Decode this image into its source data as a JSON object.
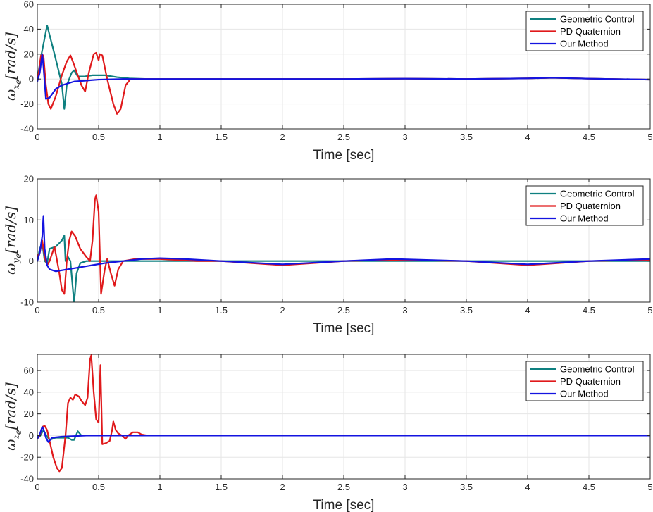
{
  "chart_data": [
    {
      "type": "line",
      "ylabel_symbol": "ω",
      "ylabel_sub1": "x",
      "ylabel_sub2": "e",
      "ylabel_unit": "[rad/s]",
      "xlabel": "Time [sec]",
      "xlim": [
        0,
        5
      ],
      "ylim": [
        -40,
        60
      ],
      "xticks": [
        0,
        0.5,
        1,
        1.5,
        2,
        2.5,
        3,
        3.5,
        4,
        4.5,
        5
      ],
      "xtick_labels": [
        "0",
        "0.5",
        "1",
        "1.5",
        "2",
        "2.5",
        "3",
        "3.5",
        "4",
        "4.5",
        "5"
      ],
      "yticks": [
        -40,
        -20,
        0,
        20,
        40,
        60
      ],
      "ytick_labels": [
        "-40",
        "-20",
        "0",
        "20",
        "40",
        "60"
      ],
      "grid": true,
      "legend_position": "top-right",
      "series": [
        {
          "name": "Geometric Control",
          "color": "#0f8080",
          "points": [
            [
              0,
              0
            ],
            [
              0.03,
              18
            ],
            [
              0.08,
              43
            ],
            [
              0.14,
              20
            ],
            [
              0.2,
              -4
            ],
            [
              0.22,
              -24
            ],
            [
              0.24,
              -5
            ],
            [
              0.28,
              5
            ],
            [
              0.3,
              7
            ],
            [
              0.33,
              2
            ],
            [
              0.38,
              2
            ],
            [
              0.45,
              3
            ],
            [
              0.55,
              3
            ],
            [
              0.65,
              1.5
            ],
            [
              0.75,
              0.5
            ],
            [
              0.9,
              0
            ],
            [
              1.5,
              0
            ],
            [
              2,
              0
            ],
            [
              2.5,
              0
            ],
            [
              3,
              0.3
            ],
            [
              3.5,
              0
            ],
            [
              4,
              0.5
            ],
            [
              4.2,
              1
            ],
            [
              4.5,
              0.3
            ],
            [
              5,
              -0.5
            ]
          ]
        },
        {
          "name": "PD Quaternion",
          "color": "#e0191b",
          "points": [
            [
              0,
              0
            ],
            [
              0.01,
              4
            ],
            [
              0.03,
              19
            ],
            [
              0.05,
              19
            ],
            [
              0.07,
              -5
            ],
            [
              0.09,
              -20
            ],
            [
              0.11,
              -24
            ],
            [
              0.15,
              -14
            ],
            [
              0.2,
              3
            ],
            [
              0.24,
              14
            ],
            [
              0.27,
              19
            ],
            [
              0.29,
              14
            ],
            [
              0.33,
              3
            ],
            [
              0.36,
              -5
            ],
            [
              0.39,
              -10
            ],
            [
              0.42,
              5
            ],
            [
              0.46,
              20
            ],
            [
              0.48,
              21
            ],
            [
              0.5,
              15
            ],
            [
              0.51,
              20
            ],
            [
              0.53,
              19
            ],
            [
              0.57,
              0
            ],
            [
              0.62,
              -20
            ],
            [
              0.65,
              -28
            ],
            [
              0.68,
              -24
            ],
            [
              0.72,
              -5
            ],
            [
              0.76,
              0
            ],
            [
              0.82,
              0
            ],
            [
              0.9,
              0
            ],
            [
              1,
              0
            ],
            [
              1.5,
              0
            ],
            [
              2,
              0
            ],
            [
              2.5,
              0
            ],
            [
              3,
              0.3
            ],
            [
              3.5,
              0
            ],
            [
              4,
              0.5
            ],
            [
              4.2,
              1
            ],
            [
              4.5,
              0.3
            ],
            [
              5,
              -0.5
            ]
          ]
        },
        {
          "name": "Our Method",
          "color": "#1414e0",
          "points": [
            [
              0,
              -2
            ],
            [
              0.02,
              5
            ],
            [
              0.04,
              20
            ],
            [
              0.05,
              10
            ],
            [
              0.07,
              -16
            ],
            [
              0.1,
              -15
            ],
            [
              0.15,
              -8
            ],
            [
              0.2,
              -5
            ],
            [
              0.3,
              -2
            ],
            [
              0.5,
              -0.5
            ],
            [
              0.7,
              0
            ],
            [
              1,
              0
            ],
            [
              1.5,
              0
            ],
            [
              2,
              0
            ],
            [
              2.5,
              0
            ],
            [
              3,
              0.3
            ],
            [
              3.5,
              0
            ],
            [
              4,
              0.5
            ],
            [
              4.2,
              1
            ],
            [
              4.5,
              0.3
            ],
            [
              5,
              -0.5
            ]
          ]
        }
      ]
    },
    {
      "type": "line",
      "ylabel_symbol": "ω",
      "ylabel_sub1": "y",
      "ylabel_sub2": "e",
      "ylabel_unit": "[rad/s]",
      "xlabel": "Time [sec]",
      "xlim": [
        0,
        5
      ],
      "ylim": [
        -10,
        20
      ],
      "xticks": [
        0,
        0.5,
        1,
        1.5,
        2,
        2.5,
        3,
        3.5,
        4,
        4.5,
        5
      ],
      "xtick_labels": [
        "0",
        "0.5",
        "1",
        "1.5",
        "2",
        "2.5",
        "3",
        "3.5",
        "4",
        "4.5",
        "5"
      ],
      "yticks": [
        -10,
        0,
        10,
        20
      ],
      "ytick_labels": [
        "-10",
        "0",
        "10",
        "20"
      ],
      "grid": true,
      "legend_position": "top-right",
      "series": [
        {
          "name": "Geometric Control",
          "color": "#0f8080",
          "points": [
            [
              0,
              0
            ],
            [
              0.02,
              3
            ],
            [
              0.04,
              4.5
            ],
            [
              0.06,
              0
            ],
            [
              0.08,
              -0.5
            ],
            [
              0.1,
              3
            ],
            [
              0.15,
              3.5
            ],
            [
              0.2,
              5
            ],
            [
              0.22,
              6.2
            ],
            [
              0.23,
              0
            ],
            [
              0.25,
              1
            ],
            [
              0.27,
              0
            ],
            [
              0.3,
              -10.3
            ],
            [
              0.32,
              -3
            ],
            [
              0.35,
              -0.5
            ],
            [
              0.4,
              0
            ],
            [
              0.5,
              0
            ],
            [
              0.8,
              0
            ],
            [
              1,
              0
            ],
            [
              1.5,
              0
            ],
            [
              2,
              0
            ],
            [
              2.5,
              0
            ],
            [
              3,
              0
            ],
            [
              3.5,
              0
            ],
            [
              4,
              0
            ],
            [
              4.5,
              0
            ],
            [
              5,
              0
            ]
          ]
        },
        {
          "name": "PD Quaternion",
          "color": "#e0191b",
          "points": [
            [
              0,
              1
            ],
            [
              0.02,
              2
            ],
            [
              0.04,
              5
            ],
            [
              0.06,
              1
            ],
            [
              0.08,
              -1
            ],
            [
              0.1,
              0
            ],
            [
              0.14,
              3.5
            ],
            [
              0.18,
              -3
            ],
            [
              0.2,
              -7
            ],
            [
              0.22,
              -8
            ],
            [
              0.24,
              0
            ],
            [
              0.26,
              5
            ],
            [
              0.28,
              7.2
            ],
            [
              0.31,
              6
            ],
            [
              0.35,
              3
            ],
            [
              0.4,
              1
            ],
            [
              0.43,
              0
            ],
            [
              0.45,
              5
            ],
            [
              0.47,
              15
            ],
            [
              0.48,
              16
            ],
            [
              0.5,
              12
            ],
            [
              0.52,
              -8
            ],
            [
              0.55,
              -2
            ],
            [
              0.57,
              0.5
            ],
            [
              0.6,
              -3
            ],
            [
              0.63,
              -6
            ],
            [
              0.66,
              -2
            ],
            [
              0.7,
              0
            ],
            [
              0.8,
              0.5
            ],
            [
              1,
              0.5
            ],
            [
              1.3,
              0
            ],
            [
              1.5,
              0
            ],
            [
              2,
              -1
            ],
            [
              2.5,
              0
            ],
            [
              2.9,
              0.3
            ],
            [
              3.5,
              0
            ],
            [
              4,
              -1
            ],
            [
              4.5,
              0
            ],
            [
              5,
              0.3
            ]
          ]
        },
        {
          "name": "Our Method",
          "color": "#1414e0",
          "points": [
            [
              0,
              0
            ],
            [
              0.02,
              2
            ],
            [
              0.04,
              6
            ],
            [
              0.05,
              11
            ],
            [
              0.06,
              3
            ],
            [
              0.08,
              -1
            ],
            [
              0.1,
              -2
            ],
            [
              0.15,
              -2.5
            ],
            [
              0.25,
              -2
            ],
            [
              0.35,
              -1.5
            ],
            [
              0.45,
              -1
            ],
            [
              0.55,
              -0.5
            ],
            [
              0.7,
              0
            ],
            [
              0.85,
              0.5
            ],
            [
              1,
              0.7
            ],
            [
              1.2,
              0.5
            ],
            [
              1.5,
              0
            ],
            [
              2,
              -0.8
            ],
            [
              2.5,
              0
            ],
            [
              2.9,
              0.5
            ],
            [
              3.5,
              0
            ],
            [
              4,
              -0.8
            ],
            [
              4.5,
              0
            ],
            [
              5,
              0.5
            ]
          ]
        }
      ]
    },
    {
      "type": "line",
      "ylabel_symbol": "ω",
      "ylabel_sub1": "z",
      "ylabel_sub2": "e",
      "ylabel_unit": "[rad/s]",
      "xlabel": "Time [sec]",
      "xlim": [
        0,
        5
      ],
      "ylim": [
        -40,
        75
      ],
      "xticks": [
        0,
        0.5,
        1,
        1.5,
        2,
        2.5,
        3,
        3.5,
        4,
        4.5,
        5
      ],
      "xtick_labels": [
        "0",
        "0.5",
        "1",
        "1.5",
        "2",
        "2.5",
        "3",
        "3.5",
        "4",
        "4.5",
        "5"
      ],
      "yticks": [
        -40,
        -20,
        0,
        20,
        40,
        60
      ],
      "ytick_labels": [
        "-40",
        "-20",
        "0",
        "20",
        "40",
        "60"
      ],
      "grid": true,
      "legend_position": "top-right",
      "series": [
        {
          "name": "Geometric Control",
          "color": "#0f8080",
          "points": [
            [
              0,
              0
            ],
            [
              0.02,
              -1
            ],
            [
              0.05,
              5
            ],
            [
              0.08,
              -1
            ],
            [
              0.1,
              -4
            ],
            [
              0.15,
              -2
            ],
            [
              0.2,
              -2
            ],
            [
              0.25,
              -2
            ],
            [
              0.28,
              -4
            ],
            [
              0.3,
              -4
            ],
            [
              0.33,
              4
            ],
            [
              0.36,
              0
            ],
            [
              0.4,
              0
            ],
            [
              0.5,
              0
            ],
            [
              1,
              0
            ],
            [
              5,
              0
            ]
          ]
        },
        {
          "name": "PD Quaternion",
          "color": "#e0191b",
          "points": [
            [
              0,
              -3
            ],
            [
              0.02,
              0
            ],
            [
              0.04,
              8
            ],
            [
              0.06,
              9
            ],
            [
              0.08,
              5
            ],
            [
              0.1,
              -5
            ],
            [
              0.13,
              -20
            ],
            [
              0.16,
              -30
            ],
            [
              0.18,
              -33
            ],
            [
              0.2,
              -30
            ],
            [
              0.23,
              0
            ],
            [
              0.25,
              30
            ],
            [
              0.27,
              35
            ],
            [
              0.29,
              33
            ],
            [
              0.31,
              38
            ],
            [
              0.34,
              36
            ],
            [
              0.36,
              32
            ],
            [
              0.39,
              28
            ],
            [
              0.41,
              35
            ],
            [
              0.43,
              70
            ],
            [
              0.44,
              74
            ],
            [
              0.46,
              40
            ],
            [
              0.48,
              15
            ],
            [
              0.5,
              12
            ],
            [
              0.515,
              65
            ],
            [
              0.53,
              -8
            ],
            [
              0.56,
              -7
            ],
            [
              0.59,
              -5
            ],
            [
              0.61,
              5
            ],
            [
              0.62,
              13
            ],
            [
              0.64,
              5
            ],
            [
              0.66,
              2
            ],
            [
              0.69,
              0
            ],
            [
              0.72,
              -3
            ],
            [
              0.74,
              0
            ],
            [
              0.78,
              3
            ],
            [
              0.82,
              3
            ],
            [
              0.85,
              1
            ],
            [
              0.9,
              0
            ],
            [
              1,
              0
            ],
            [
              5,
              0
            ]
          ]
        },
        {
          "name": "Our Method",
          "color": "#1414e0",
          "points": [
            [
              0,
              -3
            ],
            [
              0.02,
              1
            ],
            [
              0.04,
              8
            ],
            [
              0.05,
              6
            ],
            [
              0.07,
              -2
            ],
            [
              0.09,
              -6
            ],
            [
              0.12,
              -2
            ],
            [
              0.2,
              -1
            ],
            [
              0.3,
              -0.5
            ],
            [
              0.4,
              0
            ],
            [
              1,
              0
            ],
            [
              5,
              0
            ]
          ]
        }
      ]
    }
  ]
}
